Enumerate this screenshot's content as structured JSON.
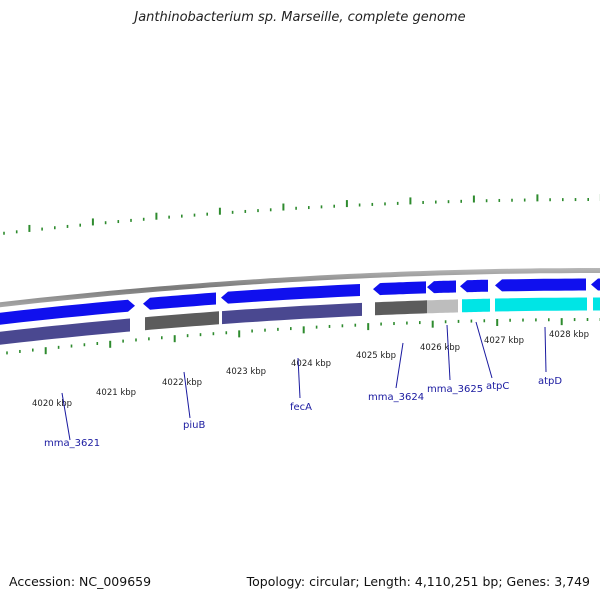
{
  "title": "Janthinobacterium sp. Marseille, complete genome",
  "footer": {
    "accession": "Accession: NC_009659",
    "topology": "Topology: circular; Length: 4,110,251 bp; Genes: 3,749"
  },
  "colors": {
    "backbone": "#8a8a8a",
    "cds": "#1010ee",
    "gene_purple": "#4a4890",
    "gene_gray": "#5c5c5c",
    "gene_lightgray": "#bdbdbd",
    "gene_cyan": "#00e5e5",
    "tick_green": "#2e8b2e",
    "label_blue": "#1a1aa0"
  },
  "scale_labels": [
    "4020 kbp",
    "4021 kbp",
    "4022 kbp",
    "4023 kbp",
    "4024 kbp",
    "4025 kbp",
    "4026 kbp",
    "4027 kbp",
    "4028 kbp"
  ],
  "gene_labels": [
    "mma_3621",
    "piuB",
    "fecA",
    "mma_3624",
    "mma_3625",
    "atpC",
    "atpD"
  ]
}
